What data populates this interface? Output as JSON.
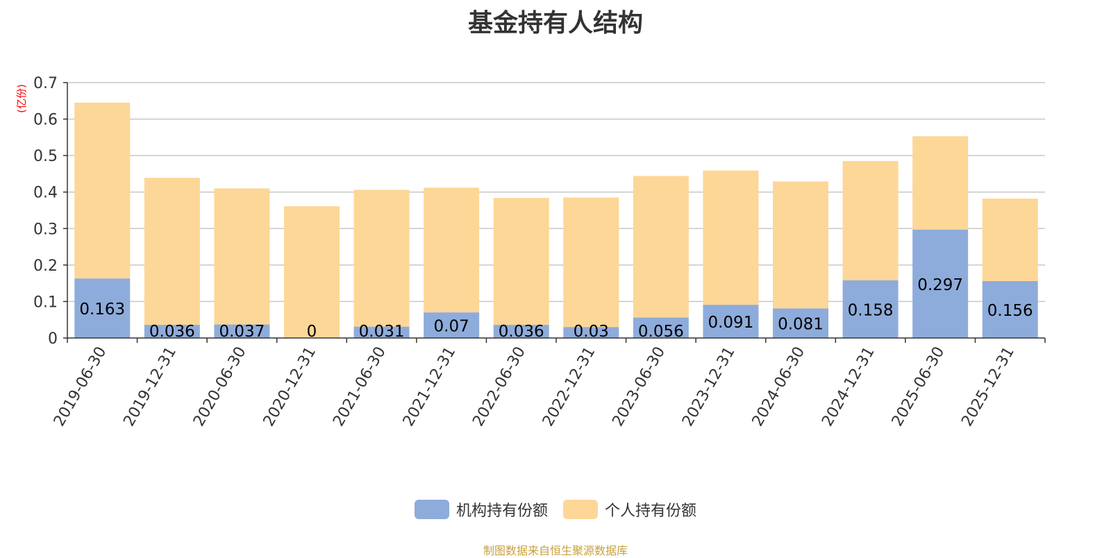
{
  "title": "基金持有人结构",
  "unit_label": "(亿份)",
  "source_note": "制图数据来自恒生聚源数据库",
  "colors": {
    "institutional": "#8eacdb",
    "individual": "#fdd797",
    "axis": "#333333",
    "grid": "#c8c8c8",
    "unit": "#ff0000",
    "source": "#c9a13b"
  },
  "chart_data": {
    "type": "bar",
    "stacked": true,
    "title": "基金持有人结构",
    "ylabel": "(亿份)",
    "ylim": [
      0,
      0.7
    ],
    "y_ticks": [
      "0",
      "0.1",
      "0.2",
      "0.3",
      "0.4",
      "0.5",
      "0.6",
      "0.7"
    ],
    "grid": true,
    "legend_position": "bottom-center",
    "categories": [
      "2019-06-30",
      "2019-12-31",
      "2020-06-30",
      "2020-12-31",
      "2021-06-30",
      "2021-12-31",
      "2022-06-30",
      "2022-12-31",
      "2023-06-30",
      "2023-12-31",
      "2024-06-30",
      "2024-12-31",
      "2025-06-30",
      "2025-12-31"
    ],
    "series": [
      {
        "name": "机构持有份额",
        "values": [
          0.163,
          0.036,
          0.037,
          0,
          0.031,
          0.07,
          0.036,
          0.03,
          0.056,
          0.091,
          0.081,
          0.158,
          0.297,
          0.156
        ],
        "labels": [
          "0.163",
          "0.036",
          "0.037",
          "0",
          "0.031",
          "0.07",
          "0.036",
          "0.03",
          "0.056",
          "0.091",
          "0.081",
          "0.158",
          "0.297",
          "0.156"
        ]
      },
      {
        "name": "个人持有份额",
        "values": [
          0.482,
          0.403,
          0.373,
          0.361,
          0.375,
          0.342,
          0.348,
          0.355,
          0.388,
          0.368,
          0.348,
          0.327,
          0.256,
          0.226
        ]
      }
    ]
  }
}
